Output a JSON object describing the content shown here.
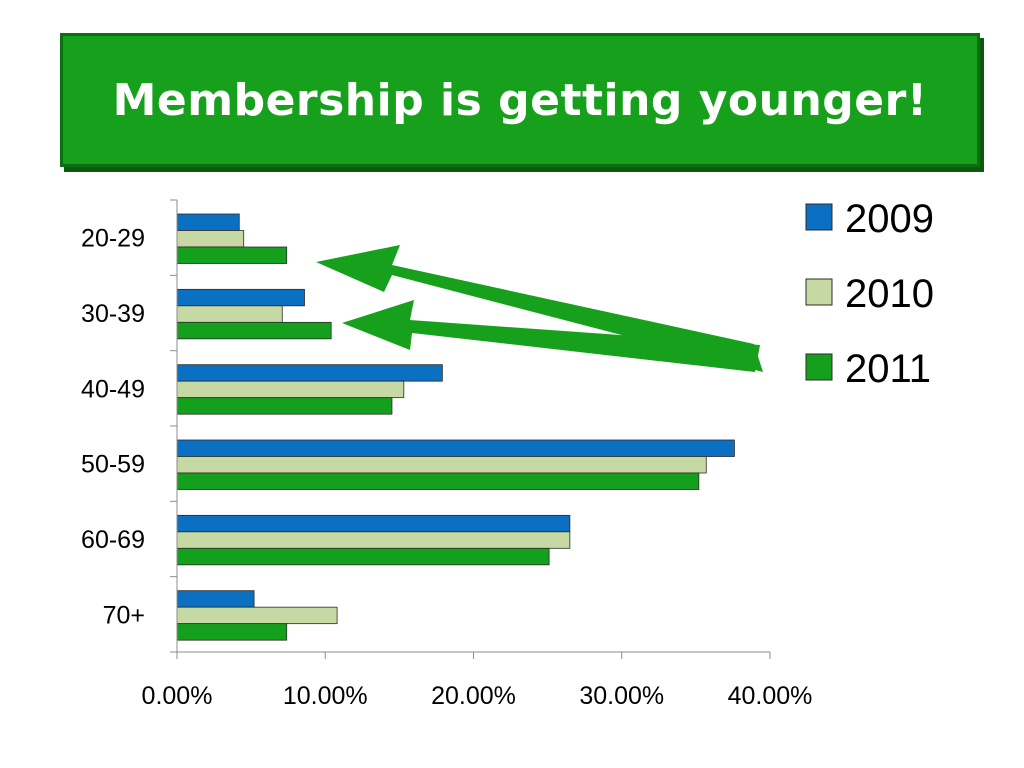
{
  "title": "Membership is getting younger!",
  "colors": {
    "banner": "#16a01c",
    "s2009": "#0b6fc2",
    "s2010": "#c6d9a4",
    "s2011": "#14a01c",
    "arrow": "#16a01c"
  },
  "chart_data": {
    "type": "bar",
    "orientation": "horizontal",
    "title": "Membership is getting younger!",
    "categories": [
      "20-29",
      "30-39",
      "40-49",
      "50-59",
      "60-69",
      "70+"
    ],
    "series": [
      {
        "name": "2009",
        "color": "#0b6fc2",
        "values": [
          4.2,
          8.6,
          17.9,
          37.6,
          26.5,
          5.2
        ]
      },
      {
        "name": "2010",
        "color": "#c6d9a4",
        "values": [
          4.5,
          7.1,
          15.3,
          35.7,
          26.5,
          10.8
        ]
      },
      {
        "name": "2011",
        "color": "#14a01c",
        "values": [
          7.4,
          10.4,
          14.5,
          35.2,
          25.1,
          7.4
        ]
      }
    ],
    "xticks": [
      "0.00%",
      "10.00%",
      "20.00%",
      "30.00%",
      "40.00%"
    ],
    "xlim": [
      0,
      40
    ],
    "grid": false,
    "legend_position": "top-right",
    "annotations": [
      {
        "type": "arrow",
        "points_to": "20-29"
      },
      {
        "type": "arrow",
        "points_to": "30-39"
      }
    ]
  }
}
